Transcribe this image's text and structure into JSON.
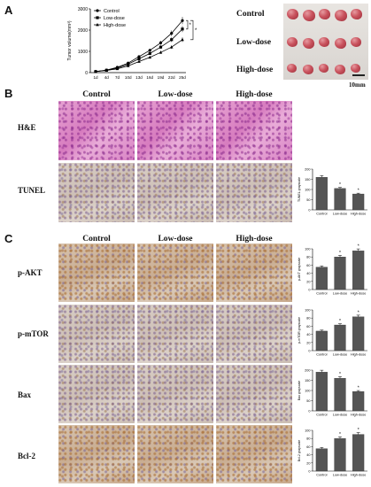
{
  "panels": {
    "a": "A",
    "b": "B",
    "c": "C"
  },
  "growth_chart": {
    "ylabel": "Tumor volume(mm³)",
    "legend": [
      "Control",
      "Low-dose",
      "High-dose"
    ],
    "significance": [
      "*",
      "*"
    ]
  },
  "tumor_photo": {
    "rows": [
      "Control",
      "Low-dose",
      "High-dose"
    ],
    "scale_bar": "10mm"
  },
  "panel_b": {
    "columns": [
      "Control",
      "Low-dose",
      "High-dose"
    ],
    "rows": [
      "H&E",
      "TUNEL"
    ]
  },
  "panel_c": {
    "columns": [
      "Control",
      "Low-dose",
      "High-dose"
    ],
    "rows": [
      "p-AKT",
      "p-mTOR",
      "Bax",
      "Bcl-2"
    ]
  },
  "chart_data": [
    {
      "type": "line",
      "ylabel": "Tumor volume(mm³)",
      "x": [
        "1d",
        "4d",
        "7d",
        "10d",
        "13d",
        "16d",
        "19d",
        "22d",
        "25d"
      ],
      "ylim": [
        0,
        3000
      ],
      "yticks": [
        0,
        1000,
        2000,
        3000
      ],
      "series": [
        {
          "name": "Control",
          "values": [
            50,
            120,
            250,
            450,
            750,
            1050,
            1400,
            1850,
            2450
          ]
        },
        {
          "name": "Low-dose",
          "values": [
            50,
            110,
            220,
            400,
            650,
            900,
            1200,
            1550,
            2050
          ]
        },
        {
          "name": "High-dose",
          "values": [
            50,
            100,
            180,
            320,
            520,
            720,
            950,
            1200,
            1550
          ]
        }
      ]
    },
    {
      "type": "bar",
      "ylabel": "TUNEL grayscale",
      "categories": [
        "Control",
        "Low-dose",
        "High-dose"
      ],
      "values": [
        160,
        105,
        78
      ],
      "ylim": [
        0,
        200
      ],
      "yticks": [
        0,
        50,
        100,
        150,
        200
      ],
      "annotations": [
        "",
        "*",
        "*"
      ]
    },
    {
      "type": "bar",
      "ylabel": "p-AKT grayscale",
      "categories": [
        "Control",
        "Low-dose",
        "High-dose"
      ],
      "values": [
        55,
        80,
        95
      ],
      "ylim": [
        0,
        100
      ],
      "yticks": [
        0,
        20,
        40,
        60,
        80,
        100
      ],
      "annotations": [
        "",
        "*",
        "*"
      ]
    },
    {
      "type": "bar",
      "ylabel": "p-mTOR grayscale",
      "categories": [
        "Control",
        "Low-dose",
        "High-dose"
      ],
      "values": [
        48,
        63,
        83
      ],
      "ylim": [
        0,
        100
      ],
      "yticks": [
        0,
        20,
        40,
        60,
        80,
        100
      ],
      "annotations": [
        "",
        "*",
        "*"
      ]
    },
    {
      "type": "bar",
      "ylabel": "Bax grayscale",
      "categories": [
        "Control",
        "Low-dose",
        "High-dose"
      ],
      "values": [
        190,
        160,
        95
      ],
      "ylim": [
        0,
        200
      ],
      "yticks": [
        0,
        50,
        100,
        150,
        200
      ],
      "annotations": [
        "",
        "*",
        "*"
      ]
    },
    {
      "type": "bar",
      "ylabel": "Bcl-2 grayscale",
      "categories": [
        "Control",
        "Low-dose",
        "High-dose"
      ],
      "values": [
        55,
        80,
        90
      ],
      "ylim": [
        0,
        100
      ],
      "yticks": [
        0,
        20,
        40,
        60,
        80,
        100
      ],
      "annotations": [
        "",
        "*",
        "*"
      ]
    }
  ]
}
